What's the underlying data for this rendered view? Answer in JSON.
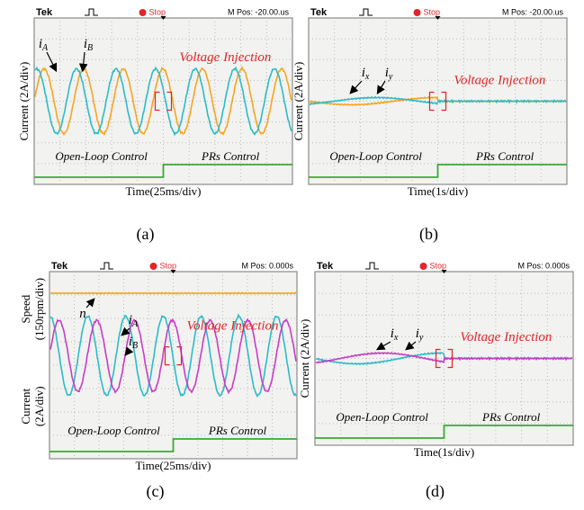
{
  "panels": [
    {
      "caption": "(a)",
      "header": {
        "brand": "Tek",
        "status": "Stop",
        "position": "M Pos: -20.00.us"
      },
      "y_labels": [
        [
          "Current (2A/div)"
        ]
      ],
      "x_label": "Time(25ms/div)",
      "injection": "Voltage Injection",
      "left_mode": "Open-Loop Control",
      "right_mode": "PRs Control",
      "signals": [
        {
          "main": "i",
          "sub": "A"
        },
        {
          "main": "i",
          "sub": "B"
        }
      ]
    },
    {
      "caption": "(b)",
      "header": {
        "brand": "Tek",
        "status": "Stop",
        "position": "M Pos: -20.00.us"
      },
      "y_labels": [
        [
          "Current (2A/div)"
        ]
      ],
      "x_label": "Time(1s/div)",
      "injection": "Voltage Injection",
      "left_mode": "Open-Loop Control",
      "right_mode": "PRs Control",
      "signals": [
        {
          "main": "i",
          "sub": "x"
        },
        {
          "main": "i",
          "sub": "y"
        }
      ]
    },
    {
      "caption": "(c)",
      "header": {
        "brand": "Tek",
        "status": "Stop",
        "position": "M Pos: 0.000s"
      },
      "y_labels": [
        [
          "Speed",
          "(150rpm/div)"
        ],
        [
          "Current",
          "(2A/div)"
        ]
      ],
      "x_label": "Time(25ms/div)",
      "injection": "Voltage Injection",
      "left_mode": "Open-Loop Control",
      "right_mode": "PRs Control",
      "signals": [
        {
          "main": "n"
        },
        {
          "main": "i",
          "sub": "A"
        },
        {
          "main": "i",
          "sub": "B"
        }
      ]
    },
    {
      "caption": "(d)",
      "header": {
        "brand": "Tek",
        "status": "Stop",
        "position": "M Pos: 0.000s"
      },
      "y_labels": [
        [
          "Current (2A/div)"
        ]
      ],
      "x_label": "Time(1s/div)",
      "injection": "Voltage Injection",
      "left_mode": "Open-Loop Control",
      "right_mode": "PRs Control",
      "signals": [
        {
          "main": "i",
          "sub": "x"
        },
        {
          "main": "i",
          "sub": "y"
        }
      ]
    }
  ]
}
